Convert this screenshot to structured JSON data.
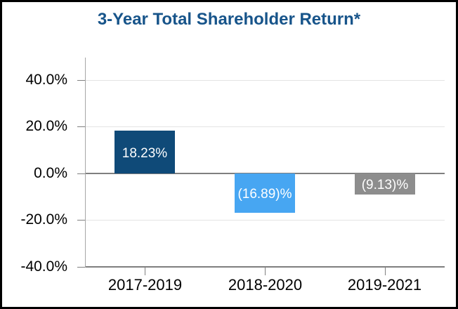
{
  "chart_data": {
    "type": "bar",
    "title": "3-Year Total Shareholder Return*",
    "categories": [
      "2017-2019",
      "2018-2020",
      "2019-2021"
    ],
    "values": [
      18.23,
      -16.89,
      -9.13
    ],
    "data_labels": [
      "18.23%",
      "(16.89)%",
      "(9.13)%"
    ],
    "bar_colors": [
      "#0F4A78",
      "#47A6F2",
      "#8D8D8D"
    ],
    "y_ticks": [
      {
        "value": 40,
        "label": "40.0%"
      },
      {
        "value": 20,
        "label": "20.0%"
      },
      {
        "value": 0,
        "label": "0.0%"
      },
      {
        "value": -20,
        "label": "-20.0%"
      },
      {
        "value": -40,
        "label": "-40.0%"
      }
    ],
    "ylim": [
      -40,
      49.6
    ],
    "grid": true,
    "legend": "none",
    "xlabel": "",
    "ylabel": ""
  },
  "colors": {
    "title": "#17548A",
    "data_label": "#FFFFFF",
    "axis_text": "#000000",
    "grid_line": "#E4E4E4",
    "zero_line": "#7F7F7F",
    "axis_line": "#A6A6A6",
    "tick": "#808080",
    "frame_border": "#000000",
    "background": "#FFFFFF"
  }
}
